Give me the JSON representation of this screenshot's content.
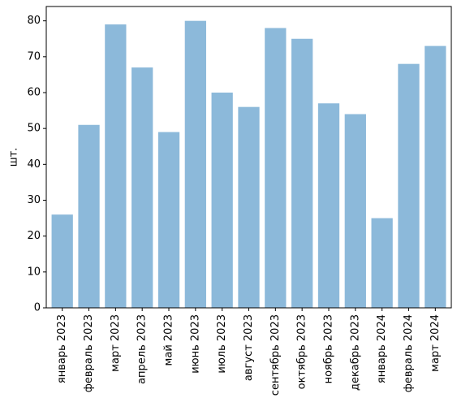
{
  "chart_data": {
    "type": "bar",
    "title": "",
    "xlabel": "",
    "ylabel": "шт.",
    "categories": [
      "январь 2023",
      "февраль 2023",
      "март 2023",
      "апрель 2023",
      "май 2023",
      "июнь 2023",
      "июль 2023",
      "август 2023",
      "сентябрь 2023",
      "октябрь 2023",
      "ноябрь 2023",
      "декабрь 2023",
      "январь 2024",
      "февраль 2024",
      "март 2024"
    ],
    "values": [
      26,
      51,
      79,
      67,
      49,
      80,
      60,
      56,
      78,
      75,
      57,
      54,
      25,
      68,
      73
    ],
    "ylim": [
      0,
      84
    ],
    "yticks": [
      0,
      10,
      20,
      30,
      40,
      50,
      60,
      70,
      80
    ],
    "grid": false,
    "bar_color": "#8cb9da"
  }
}
